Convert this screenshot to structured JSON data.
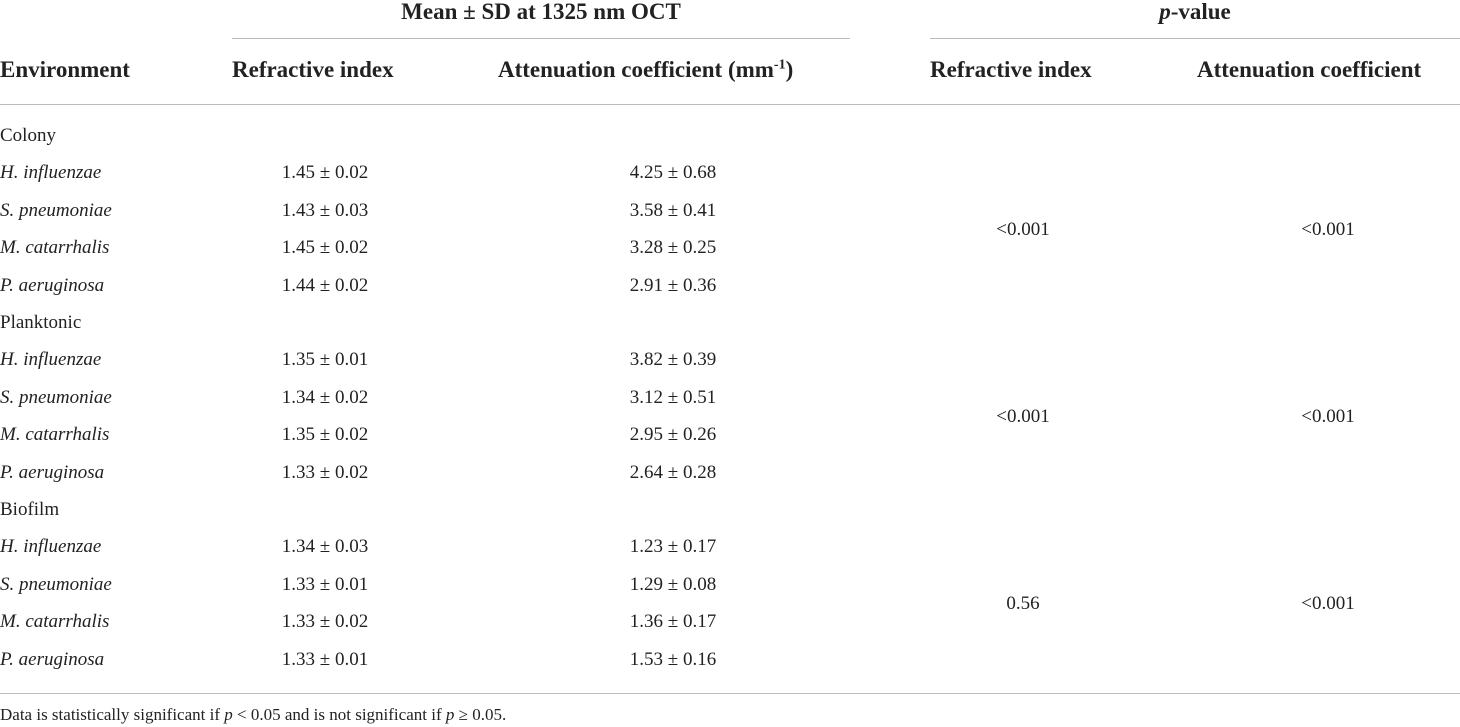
{
  "header": {
    "group_mean": "Mean ± SD at 1325 nm OCT",
    "group_p": [
      "p",
      "-value"
    ],
    "columns": [
      "Environment",
      "Refractive index",
      [
        "Attenuation coefficient (mm",
        "-1",
        ")"
      ],
      "Refractive index",
      "Attenuation coefficient"
    ]
  },
  "groups": [
    {
      "name": "Colony",
      "p_refractive": "<0.001",
      "p_attenuation": "<0.001",
      "rows": [
        {
          "organism": "H. influenzae",
          "refractive": "1.45 ± 0.02",
          "attenuation": "4.25 ± 0.68"
        },
        {
          "organism": "S. pneumoniae",
          "refractive": "1.43 ± 0.03",
          "attenuation": "3.58 ± 0.41"
        },
        {
          "organism": "M. catarrhalis",
          "refractive": "1.45 ± 0.02",
          "attenuation": "3.28 ± 0.25"
        },
        {
          "organism": "P. aeruginosa",
          "refractive": "1.44 ± 0.02",
          "attenuation": "2.91 ± 0.36"
        }
      ]
    },
    {
      "name": "Planktonic",
      "p_refractive": "<0.001",
      "p_attenuation": "<0.001",
      "rows": [
        {
          "organism": "H. influenzae",
          "refractive": "1.35 ± 0.01",
          "attenuation": "3.82 ± 0.39"
        },
        {
          "organism": "S. pneumoniae",
          "refractive": "1.34 ± 0.02",
          "attenuation": "3.12 ± 0.51"
        },
        {
          "organism": "M. catarrhalis",
          "refractive": "1.35 ± 0.02",
          "attenuation": "2.95 ± 0.26"
        },
        {
          "organism": "P. aeruginosa",
          "refractive": "1.33 ± 0.02",
          "attenuation": "2.64 ± 0.28"
        }
      ]
    },
    {
      "name": "Biofilm",
      "p_refractive": "0.56",
      "p_attenuation": "<0.001",
      "rows": [
        {
          "organism": "H. influenzae",
          "refractive": "1.34 ± 0.03",
          "attenuation": "1.23 ± 0.17"
        },
        {
          "organism": "S. pneumoniae",
          "refractive": "1.33 ± 0.01",
          "attenuation": "1.29 ± 0.08"
        },
        {
          "organism": "M. catarrhalis",
          "refractive": "1.33 ± 0.02",
          "attenuation": "1.36 ± 0.17"
        },
        {
          "organism": "P. aeruginosa",
          "refractive": "1.33 ± 0.01",
          "attenuation": "1.53 ± 0.16"
        }
      ]
    }
  ],
  "footnote": [
    "Data is statistically significant if ",
    "p",
    " < 0.05 and is not significant if ",
    "p",
    " ≥ 0.05."
  ]
}
